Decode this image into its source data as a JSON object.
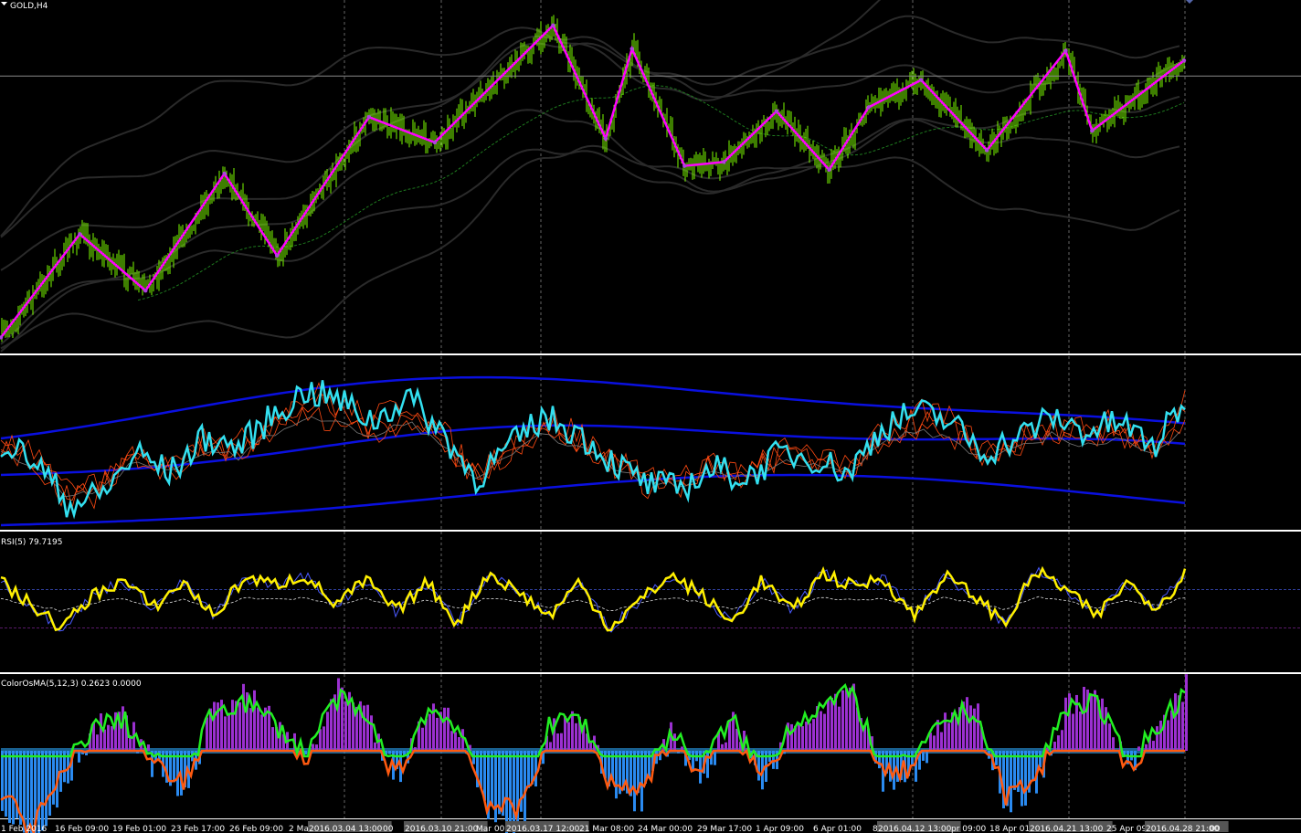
{
  "window": {
    "symbol_label": "GOLD,H4",
    "menu_icon": "triangle-down-icon"
  },
  "colors": {
    "background": "#000000",
    "candle": "#7CFC00",
    "zigzag": "#FF00FF",
    "separator": "#FFFFFF",
    "bands": "#2A2A2A",
    "ma_dashed": "#1E7A1E",
    "stoch_main": "#33E0F0",
    "stoch_bands": "#0A10E0",
    "stoch_signal": "#FF4A12",
    "rsi_main": "#FFF000",
    "rsi_blue": "#4A5AFF",
    "rsi_level_top": "#3040A0",
    "rsi_level_bottom": "#5A1A6A",
    "osma_up": "#9B30D0",
    "osma_down": "#2A8AF0",
    "osma_fast": "#22EE22",
    "osma_slow": "#FF5A10",
    "date_highlight": "#555555"
  },
  "chart_data": [
    {
      "type": "candlestick",
      "title": "GOLD,H4",
      "series": [
        {
          "name": "ZigZag",
          "points": [
            {
              "x": "2016-01-29",
              "y": 1124
            },
            {
              "x": "2016-02-04",
              "y": 1177
            },
            {
              "x": "2016-02-09",
              "y": 1148
            },
            {
              "x": "2016-02-15",
              "y": 1208
            },
            {
              "x": "2016-02-19",
              "y": 1166
            },
            {
              "x": "2016-02-26",
              "y": 1237
            },
            {
              "x": "2016-03-02",
              "y": 1224
            },
            {
              "x": "2016-03-11",
              "y": 1284
            },
            {
              "x": "2016-03-15",
              "y": 1226
            },
            {
              "x": "2016-03-17",
              "y": 1272
            },
            {
              "x": "2016-03-21",
              "y": 1212
            },
            {
              "x": "2016-03-24",
              "y": 1214
            },
            {
              "x": "2016-03-28",
              "y": 1240
            },
            {
              "x": "2016-04-01",
              "y": 1210
            },
            {
              "x": "2016-04-04",
              "y": 1242
            },
            {
              "x": "2016-04-08",
              "y": 1256
            },
            {
              "x": "2016-04-13",
              "y": 1220
            },
            {
              "x": "2016-04-19",
              "y": 1271
            },
            {
              "x": "2016-04-21",
              "y": 1230
            },
            {
              "x": "2016-04-28",
              "y": 1266
            }
          ]
        }
      ]
    },
    {
      "type": "line",
      "title": "",
      "series": [
        {
          "name": "",
          "values": [
            62,
            55,
            38,
            42,
            58,
            50,
            64,
            60,
            72,
            82,
            78,
            70,
            80,
            66,
            48,
            60,
            72,
            66,
            55,
            46,
            44,
            52,
            48,
            58,
            56,
            50,
            68,
            74,
            70,
            58,
            64,
            72,
            66,
            70,
            60,
            80
          ]
        }
      ]
    },
    {
      "type": "line",
      "title": "RSI(5) 79.7195",
      "ylabel": "",
      "series": [
        {
          "name": "",
          "values": [
            70,
            50,
            30,
            58,
            72,
            48,
            70,
            40,
            74,
            68,
            76,
            50,
            72,
            44,
            70,
            34,
            78,
            62,
            40,
            70,
            30,
            54,
            76,
            60,
            34,
            72,
            44,
            78,
            66,
            74,
            40,
            76,
            58,
            34,
            80,
            64,
            40,
            70,
            48,
            80
          ]
        }
      ],
      "levels": [
        70,
        30
      ]
    },
    {
      "type": "bar",
      "title": "ColorOsMA(5,12,3) 0.2623 0.0000",
      "series": [
        {
          "name": "",
          "values": [
            -0.9,
            -1.8,
            -0.6,
            0.4,
            0.6,
            -0.3,
            -0.8,
            0.8,
            1.0,
            0.5,
            -0.2,
            1.1,
            0.6,
            -0.6,
            0.8,
            0.5,
            -1.2,
            -1.4,
            0.4,
            0.7,
            -0.7,
            -0.9,
            0.3,
            -0.5,
            0.6,
            -0.6,
            0.5,
            0.9,
            1.2,
            -0.6,
            -0.4,
            0.6,
            0.8,
            -1.0,
            -0.7,
            0.9,
            1.0,
            -0.4,
            0.4,
            1.3
          ]
        }
      ]
    }
  ],
  "reference_line_price": 1266,
  "rsi_readout": "RSI(5) 79.7195",
  "osma_readout": "ColorOsMA(5,12,3) 0.2623 0.0000",
  "x_axis": {
    "ticks": [
      {
        "label": "1 Feb 2016",
        "highlight": false
      },
      {
        "label": "16 Feb 09:00",
        "highlight": false
      },
      {
        "label": "19 Feb 01:00",
        "highlight": false
      },
      {
        "label": "23 Feb 17:00",
        "highlight": false
      },
      {
        "label": "26 Feb 09:00",
        "highlight": false
      },
      {
        "label": "2 Ma",
        "highlight": false
      },
      {
        "label": "2016.03.04 13:00",
        "highlight": true
      },
      {
        "label": "00",
        "highlight": false
      },
      {
        "label": "2016.03.10 21:00",
        "highlight": true
      },
      {
        "label": "Mar 00:",
        "highlight": false
      },
      {
        "label": "2016.03.17 12:00",
        "highlight": true
      },
      {
        "label": "21 Mar 08:00",
        "highlight": false
      },
      {
        "label": "24 Mar 00:00",
        "highlight": false
      },
      {
        "label": "29 Mar 17:00",
        "highlight": false
      },
      {
        "label": "1 Apr 09:00",
        "highlight": false
      },
      {
        "label": "6 Apr 01:00",
        "highlight": false
      },
      {
        "label": "8",
        "highlight": false
      },
      {
        "label": "2016.04.12 13:00",
        "highlight": true
      },
      {
        "label": "pr 09:00",
        "highlight": false
      },
      {
        "label": "18 Apr 01:",
        "highlight": false
      },
      {
        "label": "2016.04.21 13:00",
        "highlight": true
      },
      {
        "label": "25 Apr 09:",
        "highlight": false
      },
      {
        "label": "2016.04.28 21:00",
        "highlight": true
      },
      {
        "label": "00",
        "highlight": false
      }
    ]
  }
}
